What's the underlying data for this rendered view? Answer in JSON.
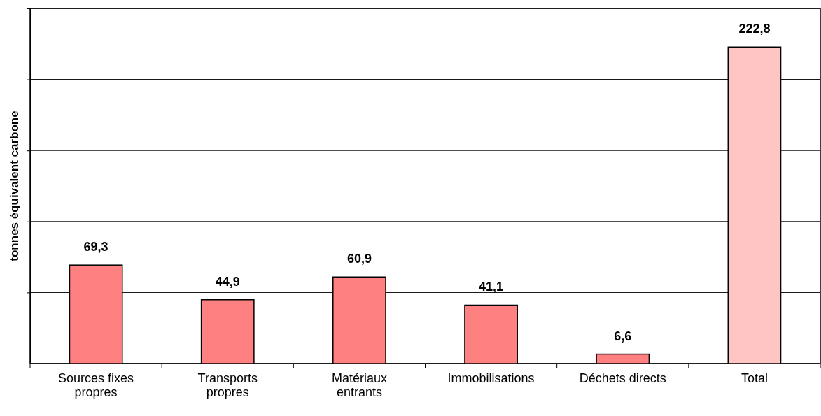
{
  "chart_data": {
    "type": "bar",
    "ylabel": "tonnes équivalent carbone",
    "categories": [
      "Sources fixes propres",
      "Transports propres",
      "Matériaux entrants",
      "Immobilisations",
      "Déchets directs",
      "Total"
    ],
    "values": [
      69.3,
      44.9,
      60.9,
      41.1,
      6.6,
      222.8
    ],
    "colors": [
      "#ff8080",
      "#ff8080",
      "#ff8080",
      "#ff8080",
      "#ff8080",
      "#ffc4c4"
    ],
    "value_labels": [
      "69,3",
      "44,9",
      "60,9",
      "41,1",
      "6,6",
      "222,8"
    ],
    "ylim": [
      0,
      250
    ],
    "yticks": [
      {
        "value": 0,
        "label": null
      },
      {
        "value": 50,
        "label": null
      },
      {
        "value": 100,
        "label": null
      },
      {
        "value": 150,
        "label": null
      },
      {
        "value": 200,
        "label": null
      },
      {
        "value": 250,
        "label": null
      }
    ],
    "grid": "y"
  }
}
